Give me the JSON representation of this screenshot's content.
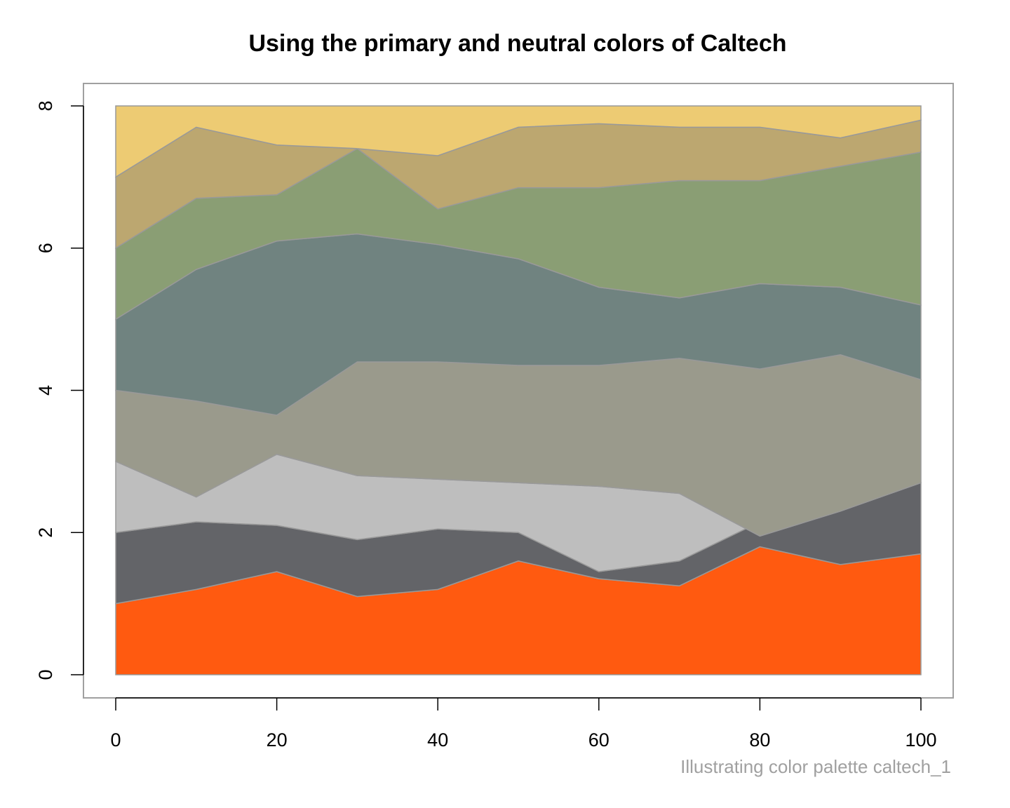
{
  "chart_data": {
    "type": "area",
    "title": "Using the primary and neutral colors of Caltech",
    "caption": "Illustrating color palette caltech_1",
    "xlabel": "",
    "ylabel": "",
    "xlim": [
      0,
      100
    ],
    "ylim": [
      0,
      8
    ],
    "x_ticks": [
      0,
      20,
      40,
      60,
      80,
      100
    ],
    "y_ticks": [
      0,
      2,
      4,
      6,
      8
    ],
    "x_tick_labels": [
      "0",
      "20",
      "40",
      "60",
      "80",
      "100"
    ],
    "y_tick_labels": [
      "0",
      "2",
      "4",
      "6",
      "8"
    ],
    "grid": false,
    "legend": "none",
    "stacked": true,
    "x": [
      0,
      10,
      20,
      30,
      40,
      50,
      60,
      70,
      80,
      90,
      100
    ],
    "boundaries": [
      [
        1.0,
        1.2,
        1.45,
        1.1,
        1.2,
        1.6,
        1.35,
        1.25,
        1.8,
        1.55,
        1.7
      ],
      [
        2.0,
        2.15,
        2.1,
        1.9,
        2.05,
        2.0,
        1.45,
        1.6,
        2.15,
        2.7,
        2.7
      ],
      [
        3.0,
        2.5,
        3.1,
        2.8,
        2.75,
        2.7,
        2.65,
        2.55,
        1.95,
        2.3,
        2.7
      ],
      [
        4.0,
        3.85,
        3.65,
        4.4,
        4.4,
        4.35,
        4.35,
        4.45,
        4.3,
        4.5,
        4.15
      ],
      [
        5.0,
        5.7,
        6.1,
        6.2,
        6.05,
        5.85,
        5.45,
        5.3,
        5.5,
        5.45,
        5.2
      ],
      [
        6.0,
        6.7,
        6.75,
        7.4,
        6.55,
        6.85,
        6.85,
        6.95,
        6.95,
        7.15,
        7.35
      ],
      [
        7.0,
        7.7,
        7.45,
        7.4,
        7.3,
        7.7,
        7.75,
        7.7,
        7.7,
        7.55,
        7.8
      ],
      [
        8.0,
        8.0,
        8.0,
        8.0,
        8.0,
        8.0,
        8.0,
        8.0,
        8.0,
        8.0,
        8.0
      ]
    ],
    "colors": [
      "#FF5A10",
      "#636468",
      "#BEBEBE",
      "#9A9A8C",
      "#708380",
      "#8A9E74",
      "#BCA770",
      "#EDCB73"
    ],
    "outline_color": "#999999"
  }
}
